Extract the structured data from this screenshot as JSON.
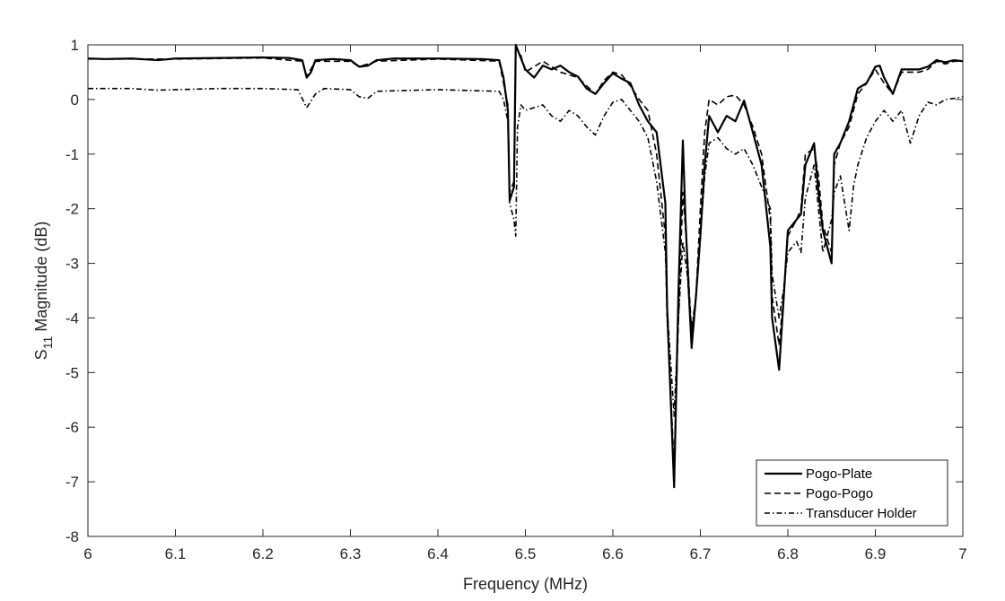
{
  "chart_data": {
    "type": "line",
    "xlabel": "Frequency (MHz)",
    "ylabel": {
      "prefix": "S",
      "subscript": "11",
      "suffix": " Magnitude (dB)"
    },
    "xlim": [
      6,
      7
    ],
    "ylim": [
      -8,
      1
    ],
    "xticks": [
      "6",
      "6.1",
      "6.2",
      "6.3",
      "6.4",
      "6.5",
      "6.6",
      "6.7",
      "6.8",
      "6.9",
      "7"
    ],
    "yticks": [
      "1",
      "0",
      "-1",
      "-2",
      "-3",
      "-4",
      "-5",
      "-6",
      "-7",
      "-8"
    ],
    "grid": false,
    "legend_position": "bottom-right",
    "series": [
      {
        "name": "Pogo-Plate",
        "style": "solid",
        "points": [
          [
            6.0,
            0.75
          ],
          [
            6.02,
            0.74
          ],
          [
            6.05,
            0.75
          ],
          [
            6.08,
            0.72
          ],
          [
            6.1,
            0.75
          ],
          [
            6.15,
            0.76
          ],
          [
            6.2,
            0.77
          ],
          [
            6.23,
            0.76
          ],
          [
            6.245,
            0.72
          ],
          [
            6.25,
            0.4
          ],
          [
            6.255,
            0.5
          ],
          [
            6.26,
            0.72
          ],
          [
            6.28,
            0.74
          ],
          [
            6.3,
            0.72
          ],
          [
            6.31,
            0.6
          ],
          [
            6.32,
            0.62
          ],
          [
            6.33,
            0.72
          ],
          [
            6.35,
            0.75
          ],
          [
            6.4,
            0.75
          ],
          [
            6.45,
            0.74
          ],
          [
            6.47,
            0.72
          ],
          [
            6.475,
            0.4
          ],
          [
            6.48,
            -0.2
          ],
          [
            6.482,
            -1.85
          ],
          [
            6.487,
            -1.6
          ],
          [
            6.489,
            1.0
          ],
          [
            6.495,
            0.75
          ],
          [
            6.5,
            0.55
          ],
          [
            6.51,
            0.4
          ],
          [
            6.52,
            0.62
          ],
          [
            6.53,
            0.55
          ],
          [
            6.54,
            0.62
          ],
          [
            6.55,
            0.5
          ],
          [
            6.56,
            0.42
          ],
          [
            6.57,
            0.2
          ],
          [
            6.58,
            0.1
          ],
          [
            6.59,
            0.3
          ],
          [
            6.6,
            0.48
          ],
          [
            6.61,
            0.38
          ],
          [
            6.62,
            0.3
          ],
          [
            6.63,
            -0.1
          ],
          [
            6.64,
            -0.4
          ],
          [
            6.65,
            -0.6
          ],
          [
            6.66,
            -1.9
          ],
          [
            6.662,
            -3.8
          ],
          [
            6.67,
            -7.1
          ],
          [
            6.675,
            -3.5
          ],
          [
            6.68,
            -0.75
          ],
          [
            6.683,
            -2.2
          ],
          [
            6.687,
            -3.6
          ],
          [
            6.69,
            -4.55
          ],
          [
            6.695,
            -3.6
          ],
          [
            6.7,
            -2.5
          ],
          [
            6.705,
            -1.2
          ],
          [
            6.71,
            -0.3
          ],
          [
            6.72,
            -0.6
          ],
          [
            6.73,
            -0.3
          ],
          [
            6.74,
            -0.4
          ],
          [
            6.75,
            -0.02
          ],
          [
            6.76,
            -0.6
          ],
          [
            6.77,
            -1.2
          ],
          [
            6.78,
            -2.7
          ],
          [
            6.782,
            -4.0
          ],
          [
            6.79,
            -4.95
          ],
          [
            6.795,
            -3.7
          ],
          [
            6.8,
            -2.4
          ],
          [
            6.81,
            -2.2
          ],
          [
            6.815,
            -2.1
          ],
          [
            6.82,
            -1.2
          ],
          [
            6.83,
            -0.8
          ],
          [
            6.835,
            -1.7
          ],
          [
            6.84,
            -2.4
          ],
          [
            6.85,
            -3.0
          ],
          [
            6.853,
            -1.0
          ],
          [
            6.86,
            -0.8
          ],
          [
            6.87,
            -0.4
          ],
          [
            6.875,
            -0.1
          ],
          [
            6.88,
            0.2
          ],
          [
            6.89,
            0.3
          ],
          [
            6.9,
            0.6
          ],
          [
            6.905,
            0.62
          ],
          [
            6.91,
            0.4
          ],
          [
            6.92,
            0.1
          ],
          [
            6.93,
            0.55
          ],
          [
            6.94,
            0.55
          ],
          [
            6.95,
            0.55
          ],
          [
            6.96,
            0.6
          ],
          [
            6.97,
            0.72
          ],
          [
            6.98,
            0.68
          ],
          [
            6.99,
            0.72
          ],
          [
            7.0,
            0.7
          ]
        ]
      },
      {
        "name": "Pogo-Pogo",
        "style": "dashed",
        "points": [
          [
            6.0,
            0.74
          ],
          [
            6.05,
            0.74
          ],
          [
            6.1,
            0.74
          ],
          [
            6.2,
            0.76
          ],
          [
            6.245,
            0.7
          ],
          [
            6.25,
            0.42
          ],
          [
            6.26,
            0.7
          ],
          [
            6.3,
            0.7
          ],
          [
            6.31,
            0.6
          ],
          [
            6.33,
            0.7
          ],
          [
            6.4,
            0.74
          ],
          [
            6.47,
            0.7
          ],
          [
            6.48,
            -0.1
          ],
          [
            6.482,
            -1.7
          ],
          [
            6.487,
            -1.5
          ],
          [
            6.489,
            0.95
          ],
          [
            6.495,
            0.8
          ],
          [
            6.5,
            0.5
          ],
          [
            6.51,
            0.6
          ],
          [
            6.52,
            0.7
          ],
          [
            6.53,
            0.6
          ],
          [
            6.54,
            0.5
          ],
          [
            6.55,
            0.45
          ],
          [
            6.56,
            0.4
          ],
          [
            6.57,
            0.25
          ],
          [
            6.58,
            0.1
          ],
          [
            6.59,
            0.35
          ],
          [
            6.6,
            0.5
          ],
          [
            6.61,
            0.45
          ],
          [
            6.62,
            0.25
          ],
          [
            6.63,
            0.0
          ],
          [
            6.64,
            -0.2
          ],
          [
            6.65,
            -1.0
          ],
          [
            6.66,
            -2.5
          ],
          [
            6.662,
            -4.0
          ],
          [
            6.67,
            -6.7
          ],
          [
            6.675,
            -4.0
          ],
          [
            6.68,
            -1.7
          ],
          [
            6.685,
            -2.8
          ],
          [
            6.69,
            -4.3
          ],
          [
            6.695,
            -3.6
          ],
          [
            6.7,
            -2.0
          ],
          [
            6.705,
            -0.6
          ],
          [
            6.71,
            0.0
          ],
          [
            6.72,
            -0.1
          ],
          [
            6.73,
            0.05
          ],
          [
            6.74,
            0.08
          ],
          [
            6.75,
            -0.1
          ],
          [
            6.76,
            -0.5
          ],
          [
            6.77,
            -1.0
          ],
          [
            6.78,
            -2.2
          ],
          [
            6.782,
            -3.6
          ],
          [
            6.79,
            -4.5
          ],
          [
            6.795,
            -3.6
          ],
          [
            6.8,
            -2.5
          ],
          [
            6.81,
            -2.2
          ],
          [
            6.815,
            -2.0
          ],
          [
            6.82,
            -1.0
          ],
          [
            6.83,
            -0.9
          ],
          [
            6.835,
            -1.4
          ],
          [
            6.84,
            -2.3
          ],
          [
            6.85,
            -2.8
          ],
          [
            6.853,
            -1.2
          ],
          [
            6.86,
            -0.8
          ],
          [
            6.87,
            -0.5
          ],
          [
            6.88,
            0.1
          ],
          [
            6.89,
            0.3
          ],
          [
            6.9,
            0.55
          ],
          [
            6.91,
            0.3
          ],
          [
            6.92,
            0.1
          ],
          [
            6.93,
            0.5
          ],
          [
            6.94,
            0.5
          ],
          [
            6.95,
            0.5
          ],
          [
            6.96,
            0.55
          ],
          [
            6.97,
            0.7
          ],
          [
            6.98,
            0.65
          ],
          [
            6.99,
            0.7
          ],
          [
            7.0,
            0.7
          ]
        ]
      },
      {
        "name": "Transducer Holder",
        "style": "dashdot",
        "points": [
          [
            6.0,
            0.2
          ],
          [
            6.05,
            0.2
          ],
          [
            6.08,
            0.17
          ],
          [
            6.1,
            0.18
          ],
          [
            6.15,
            0.2
          ],
          [
            6.2,
            0.2
          ],
          [
            6.24,
            0.18
          ],
          [
            6.25,
            -0.15
          ],
          [
            6.26,
            0.1
          ],
          [
            6.27,
            0.2
          ],
          [
            6.3,
            0.18
          ],
          [
            6.31,
            0.05
          ],
          [
            6.32,
            0.02
          ],
          [
            6.33,
            0.15
          ],
          [
            6.4,
            0.18
          ],
          [
            6.47,
            0.15
          ],
          [
            6.475,
            0.0
          ],
          [
            6.48,
            -0.4
          ],
          [
            6.482,
            -1.9
          ],
          [
            6.487,
            -2.2
          ],
          [
            6.489,
            -2.5
          ],
          [
            6.491,
            -0.5
          ],
          [
            6.495,
            -0.1
          ],
          [
            6.5,
            -0.2
          ],
          [
            6.51,
            -0.15
          ],
          [
            6.52,
            -0.1
          ],
          [
            6.53,
            -0.3
          ],
          [
            6.54,
            -0.4
          ],
          [
            6.55,
            -0.2
          ],
          [
            6.56,
            -0.3
          ],
          [
            6.57,
            -0.5
          ],
          [
            6.58,
            -0.65
          ],
          [
            6.59,
            -0.3
          ],
          [
            6.6,
            -0.05
          ],
          [
            6.61,
            0.0
          ],
          [
            6.62,
            -0.2
          ],
          [
            6.63,
            -0.4
          ],
          [
            6.64,
            -0.7
          ],
          [
            6.65,
            -1.5
          ],
          [
            6.66,
            -2.8
          ],
          [
            6.662,
            -3.8
          ],
          [
            6.67,
            -5.8
          ],
          [
            6.675,
            -4.0
          ],
          [
            6.68,
            -2.6
          ],
          [
            6.685,
            -3.2
          ],
          [
            6.69,
            -4.2
          ],
          [
            6.695,
            -3.6
          ],
          [
            6.7,
            -2.5
          ],
          [
            6.705,
            -1.4
          ],
          [
            6.71,
            -0.8
          ],
          [
            6.72,
            -0.7
          ],
          [
            6.73,
            -0.9
          ],
          [
            6.74,
            -1.0
          ],
          [
            6.75,
            -0.9
          ],
          [
            6.76,
            -1.2
          ],
          [
            6.77,
            -1.6
          ],
          [
            6.78,
            -2.0
          ],
          [
            6.782,
            -3.2
          ],
          [
            6.79,
            -4.0
          ],
          [
            6.795,
            -3.5
          ],
          [
            6.8,
            -2.8
          ],
          [
            6.81,
            -2.6
          ],
          [
            6.815,
            -2.8
          ],
          [
            6.82,
            -1.8
          ],
          [
            6.83,
            -1.2
          ],
          [
            6.835,
            -2.0
          ],
          [
            6.84,
            -2.8
          ],
          [
            6.85,
            -2.2
          ],
          [
            6.853,
            -1.7
          ],
          [
            6.86,
            -1.4
          ],
          [
            6.87,
            -2.4
          ],
          [
            6.875,
            -1.6
          ],
          [
            6.88,
            -1.2
          ],
          [
            6.89,
            -0.7
          ],
          [
            6.9,
            -0.4
          ],
          [
            6.91,
            -0.2
          ],
          [
            6.92,
            -0.4
          ],
          [
            6.93,
            -0.2
          ],
          [
            6.94,
            -0.8
          ],
          [
            6.95,
            -0.3
          ],
          [
            6.96,
            -0.05
          ],
          [
            6.97,
            -0.1
          ],
          [
            6.98,
            0.0
          ],
          [
            6.99,
            0.02
          ],
          [
            7.0,
            0.05
          ]
        ]
      }
    ]
  }
}
